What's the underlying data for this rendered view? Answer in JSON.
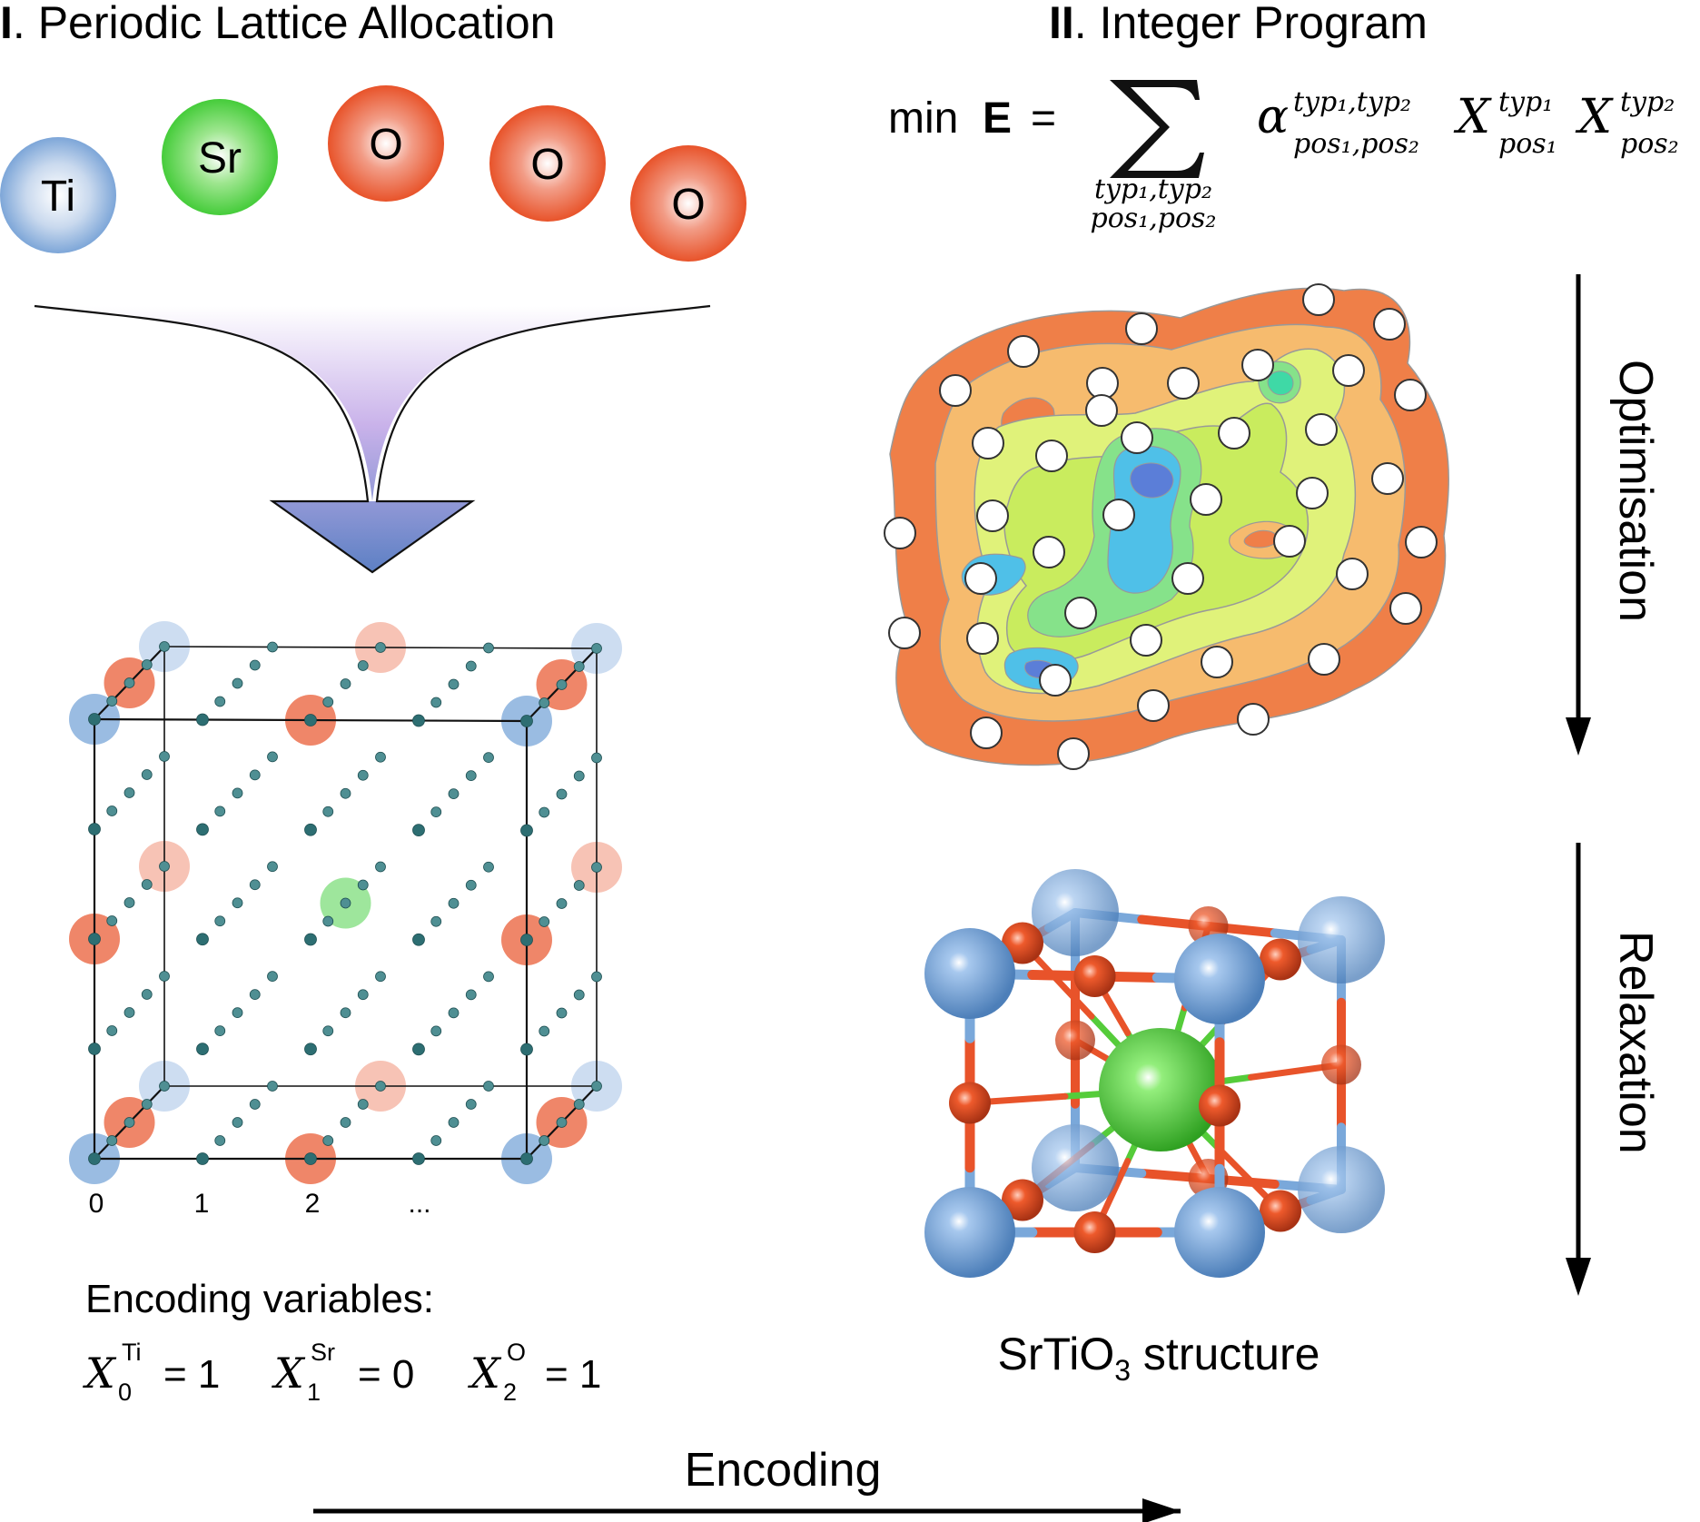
{
  "panel1": {
    "title_roman": "I",
    "title_text": ". Periodic Lattice Allocation",
    "atoms": [
      {
        "label": "Ti",
        "kind": "ti"
      },
      {
        "label": "Sr",
        "kind": "sr"
      },
      {
        "label": "O",
        "kind": "o"
      },
      {
        "label": "O",
        "kind": "o"
      },
      {
        "label": "O",
        "kind": "o"
      }
    ],
    "index_labels": [
      "0",
      "1",
      "2",
      "..."
    ],
    "encoding_heading": "Encoding variables:",
    "encoding_vars": [
      {
        "sym": "X",
        "sub": "0",
        "sup": "Ti",
        "rhs": "= 1"
      },
      {
        "sym": "X",
        "sub": "1",
        "sup": "Sr",
        "rhs": "= 0"
      },
      {
        "sym": "X",
        "sub": "2",
        "sup": "O",
        "rhs": "= 1"
      }
    ]
  },
  "panel2": {
    "title_roman": "II",
    "title_text": ". Integer Program",
    "formula": {
      "min": "min",
      "energy": "E",
      "equals": "=",
      "sum_line1": "typ₁,typ₂",
      "sum_line2": "pos₁,pos₂",
      "alpha_sup": "typ₁,typ₂",
      "alpha_sub": "pos₁,pos₂",
      "x1_sup": "typ₁",
      "x1_sub": "pos₁",
      "x2_sup": "typ₂",
      "x2_sub": "pos₂"
    },
    "optimisation_label": "Optimisation",
    "relaxation_label": "Relaxation",
    "structure_caption_pre": "SrTiO",
    "structure_caption_sub": "3",
    "structure_caption_post": " structure"
  },
  "encoding_label": "Encoding",
  "colors": {
    "ti": "#6f9fd6",
    "sr": "#4fd14a",
    "o": "#e8532a",
    "lattice_node": "#2d6e72",
    "contour_outer": "#ef7f48",
    "contour_mid": "#f6bb6e",
    "contour_green": "#c9ec5e",
    "contour_blue": "#4fc0e8"
  }
}
